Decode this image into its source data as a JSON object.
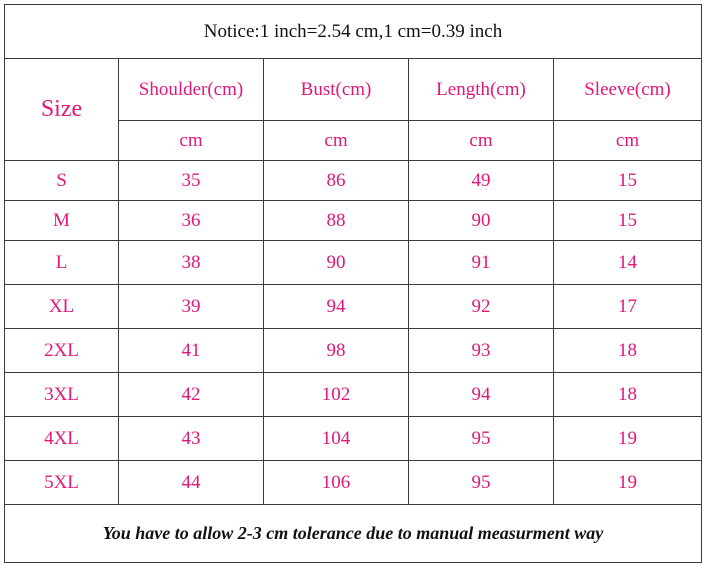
{
  "notice": "Notice:1 inch=2.54 cm,1 cm=0.39 inch",
  "table": {
    "size_label": "Size",
    "columns": [
      "Shoulder(cm)",
      "Bust(cm)",
      "Length(cm)",
      "Sleeve(cm)"
    ],
    "units": [
      "cm",
      "cm",
      "cm",
      "cm"
    ],
    "rows": [
      [
        "S",
        35,
        86,
        49,
        15
      ],
      [
        "M",
        36,
        88,
        90,
        15
      ],
      [
        "L",
        38,
        90,
        91,
        14
      ],
      [
        "XL",
        39,
        94,
        92,
        17
      ],
      [
        "2XL",
        41,
        98,
        93,
        18
      ],
      [
        "3XL",
        42,
        102,
        94,
        18
      ],
      [
        "4XL",
        43,
        104,
        95,
        19
      ],
      [
        "5XL",
        44,
        106,
        95,
        19
      ]
    ]
  },
  "footer": "You have to allow 2-3 cm tolerance due to manual measurment way"
}
